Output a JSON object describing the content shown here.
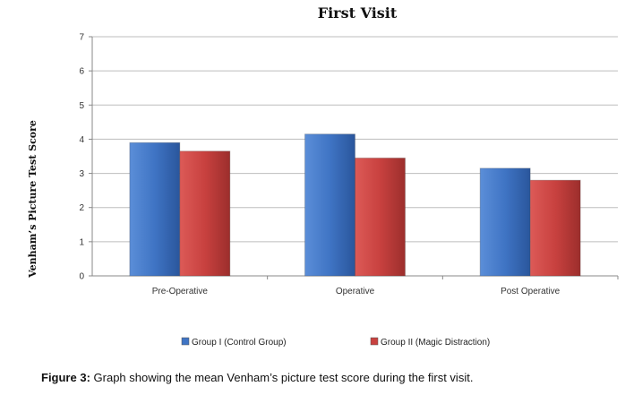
{
  "chart_data": {
    "type": "bar",
    "title": "First Visit",
    "ylabel": "Venham’s Picture Test Score",
    "xlabel": "",
    "ylim": [
      0,
      7
    ],
    "yticks": [
      0,
      1,
      2,
      3,
      4,
      5,
      6,
      7
    ],
    "grid": true,
    "legend_position": "bottom",
    "categories": [
      "Pre-Operative",
      "Operative",
      "Post Operative"
    ],
    "series": [
      {
        "name": "Group I (Control Group)",
        "values": [
          3.9,
          4.15,
          3.15
        ],
        "color": "#3f74c4"
      },
      {
        "name": "Group II (Magic Distraction)",
        "values": [
          3.65,
          3.45,
          2.8
        ],
        "color": "#c8413f"
      }
    ]
  },
  "caption": {
    "label": "Figure 3:",
    "text": " Graph showing the mean Venham’s picture test score during the first visit."
  }
}
